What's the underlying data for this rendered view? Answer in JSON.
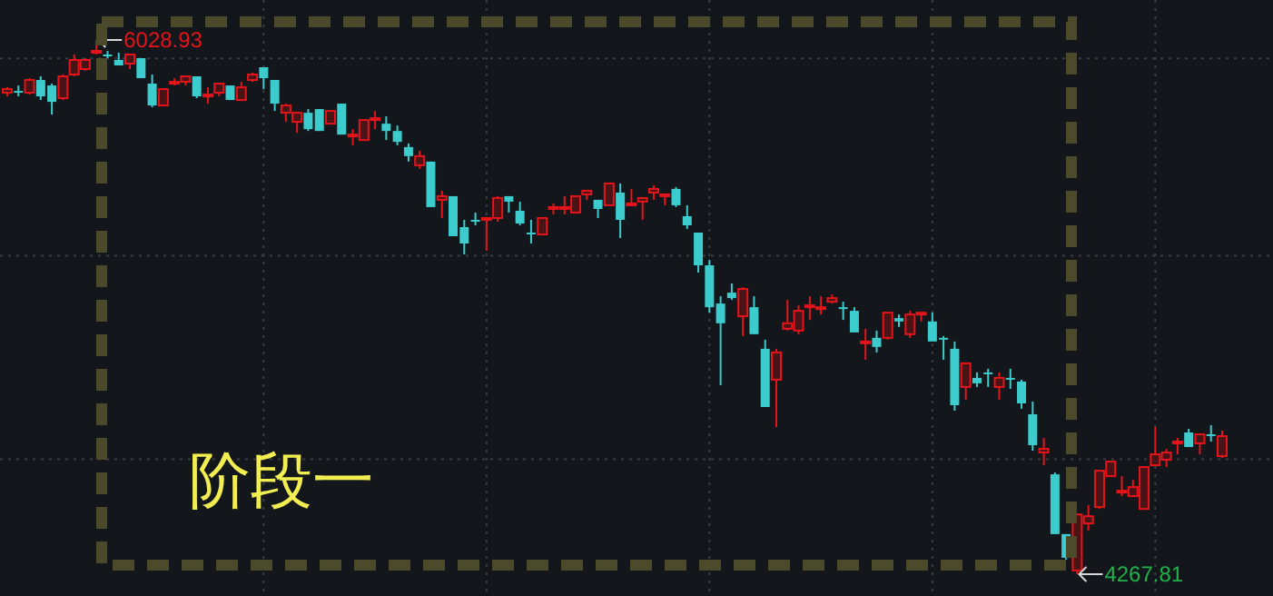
{
  "chart_data": {
    "type": "candlestick",
    "grid": true,
    "categories": [
      null,
      null,
      null,
      null,
      null,
      null,
      null,
      null,
      null,
      null,
      null,
      null,
      null,
      null,
      null,
      null,
      null,
      null,
      null,
      null,
      null,
      null,
      null,
      null,
      null,
      null,
      null,
      null,
      null,
      null,
      null,
      null,
      null,
      null,
      null,
      null,
      null,
      null,
      null,
      null,
      null,
      null,
      null,
      null,
      null,
      null,
      null,
      null,
      null,
      null,
      null,
      null,
      null,
      null,
      null,
      null,
      null,
      null,
      null,
      null,
      null,
      null,
      null,
      null,
      null,
      null,
      null,
      null,
      null,
      null,
      null,
      null,
      null,
      null,
      null,
      null,
      null,
      null,
      null,
      null,
      null,
      null,
      null,
      null,
      null,
      null,
      null,
      null,
      null,
      null,
      null,
      null,
      null,
      null,
      null,
      null,
      null,
      null,
      null,
      null,
      null,
      null,
      null,
      null,
      null,
      null,
      null,
      null,
      null,
      null
    ],
    "ohlc": [
      [
        5855,
        5873,
        5843,
        5867
      ],
      [
        5861,
        5879,
        5843,
        5855
      ],
      [
        5855,
        5903,
        5849,
        5897
      ],
      [
        5897,
        5909,
        5831,
        5843
      ],
      [
        5879,
        5885,
        5783,
        5825
      ],
      [
        5837,
        5915,
        5831,
        5909
      ],
      [
        5915,
        5981,
        5909,
        5963
      ],
      [
        5933,
        5969,
        5927,
        5963
      ],
      [
        5987,
        6028.93,
        5981,
        5993
      ],
      [
        5981,
        5993,
        5969,
        5975
      ],
      [
        5963,
        5987,
        5945,
        5945
      ],
      [
        5951,
        5981,
        5933,
        5981
      ],
      [
        5969,
        5969,
        5903,
        5903
      ],
      [
        5885,
        5915,
        5807,
        5813
      ],
      [
        5813,
        5867,
        5813,
        5867
      ],
      [
        5885,
        5903,
        5879,
        5891
      ],
      [
        5891,
        5909,
        5879,
        5909
      ],
      [
        5909,
        5909,
        5837,
        5843
      ],
      [
        5843,
        5873,
        5819,
        5849
      ],
      [
        5855,
        5885,
        5843,
        5885
      ],
      [
        5879,
        5879,
        5831,
        5831
      ],
      [
        5831,
        5891,
        5831,
        5873
      ],
      [
        5897,
        5921,
        5891,
        5915
      ],
      [
        5939,
        5939,
        5867,
        5903
      ],
      [
        5897,
        5897,
        5795,
        5819
      ],
      [
        5789,
        5819,
        5759,
        5813
      ],
      [
        5759,
        5789,
        5723,
        5789
      ],
      [
        5789,
        5801,
        5729,
        5735
      ],
      [
        5801,
        5801,
        5729,
        5729
      ],
      [
        5753,
        5795,
        5753,
        5795
      ],
      [
        5819,
        5819,
        5717,
        5717
      ],
      [
        5711,
        5735,
        5682,
        5717
      ],
      [
        5699,
        5765,
        5699,
        5765
      ],
      [
        5765,
        5795,
        5735,
        5771
      ],
      [
        5753,
        5777,
        5699,
        5729
      ],
      [
        5729,
        5747,
        5682,
        5693
      ],
      [
        5676,
        5688,
        5628,
        5646
      ],
      [
        5616,
        5664,
        5604,
        5646
      ],
      [
        5628,
        5628,
        5478,
        5478
      ],
      [
        5502,
        5532,
        5442,
        5514
      ],
      [
        5514,
        5514,
        5382,
        5382
      ],
      [
        5412,
        5436,
        5322,
        5358
      ],
      [
        5436,
        5460,
        5418,
        5430
      ],
      [
        5436,
        5442,
        5334,
        5442
      ],
      [
        5442,
        5514,
        5430,
        5508
      ],
      [
        5514,
        5514,
        5460,
        5496
      ],
      [
        5466,
        5496,
        5418,
        5424
      ],
      [
        5394,
        5436,
        5358,
        5388
      ],
      [
        5388,
        5442,
        5388,
        5442
      ],
      [
        5472,
        5490,
        5454,
        5478
      ],
      [
        5472,
        5514,
        5454,
        5478
      ],
      [
        5460,
        5514,
        5460,
        5514
      ],
      [
        5520,
        5532,
        5502,
        5532
      ],
      [
        5502,
        5502,
        5442,
        5472
      ],
      [
        5484,
        5556,
        5484,
        5556
      ],
      [
        5526,
        5556,
        5376,
        5436
      ],
      [
        5484,
        5538,
        5484,
        5490
      ],
      [
        5496,
        5508,
        5436,
        5508
      ],
      [
        5526,
        5550,
        5502,
        5538
      ],
      [
        5514,
        5520,
        5484,
        5520
      ],
      [
        5538,
        5544,
        5478,
        5484
      ],
      [
        5448,
        5484,
        5406,
        5418
      ],
      [
        5394,
        5394,
        5262,
        5286
      ],
      [
        5286,
        5304,
        5130,
        5148
      ],
      [
        5160,
        5184,
        4891,
        5095
      ],
      [
        5196,
        5226,
        5172,
        5178
      ],
      [
        5118,
        5214,
        5053,
        5208
      ],
      [
        5148,
        5184,
        5059,
        5059
      ],
      [
        5011,
        5041,
        4819,
        4819
      ],
      [
        4909,
        5011,
        4753,
        4999
      ],
      [
        5077,
        5172,
        5071,
        5095
      ],
      [
        5071,
        5154,
        5059,
        5136
      ],
      [
        5148,
        5184,
        5106,
        5154
      ],
      [
        5142,
        5184,
        5124,
        5148
      ],
      [
        5166,
        5190,
        5160,
        5178
      ],
      [
        5148,
        5166,
        5106,
        5142
      ],
      [
        5136,
        5148,
        5065,
        5065
      ],
      [
        5029,
        5077,
        4975,
        5035
      ],
      [
        5047,
        5071,
        4999,
        5017
      ],
      [
        5047,
        5130,
        5041,
        5130
      ],
      [
        5112,
        5124,
        5083,
        5101
      ],
      [
        5059,
        5136,
        5047,
        5124
      ],
      [
        5124,
        5130,
        5101,
        5130
      ],
      [
        5101,
        5130,
        5035,
        5035
      ],
      [
        5047,
        5053,
        4975,
        5041
      ],
      [
        5011,
        5035,
        4807,
        4825
      ],
      [
        4885,
        4963,
        4843,
        4963
      ],
      [
        4915,
        4933,
        4885,
        4897
      ],
      [
        4933,
        4945,
        4885,
        4927
      ],
      [
        4885,
        4933,
        4843,
        4915
      ],
      [
        4915,
        4945,
        4879,
        4909
      ],
      [
        4903,
        4909,
        4813,
        4831
      ],
      [
        4795,
        4837,
        4675,
        4693
      ],
      [
        4669,
        4717,
        4627,
        4681
      ],
      [
        4597,
        4603,
        4400,
        4400
      ],
      [
        4400,
        4400,
        4316,
        4322
      ],
      [
        4280,
        4465,
        4267.81,
        4465
      ],
      [
        4435,
        4495,
        4412,
        4459
      ],
      [
        4489,
        4609,
        4483,
        4609
      ],
      [
        4591,
        4639,
        4591,
        4639
      ],
      [
        4543,
        4591,
        4525,
        4543
      ],
      [
        4525,
        4579,
        4525,
        4555
      ],
      [
        4483,
        4621,
        4483,
        4621
      ],
      [
        4627,
        4753,
        4627,
        4663
      ],
      [
        4645,
        4681,
        4621,
        4669
      ],
      [
        4705,
        4717,
        4663,
        4705
      ],
      [
        4735,
        4747,
        4687,
        4687
      ],
      [
        4699,
        4729,
        4663,
        4729
      ],
      [
        4729,
        4759,
        4705,
        4723
      ],
      [
        4657,
        4741,
        4651,
        4723
      ]
    ],
    "annotations": [
      "6028.93",
      "4267.81",
      "阶段一"
    ]
  }
}
